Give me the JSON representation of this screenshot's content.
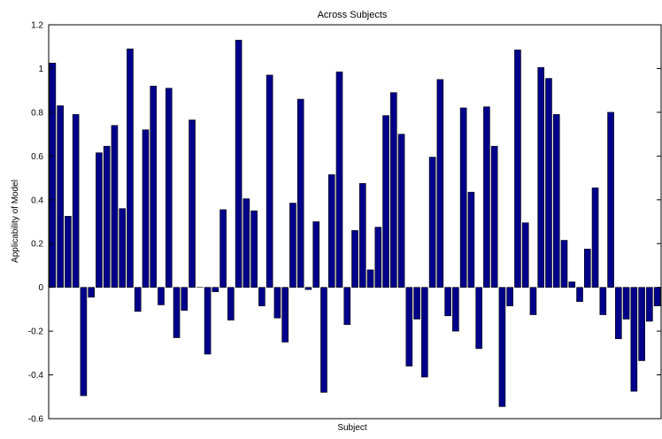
{
  "chart_data": {
    "type": "bar",
    "title": "Across Subjects",
    "xlabel": "Subject",
    "ylabel": "Applicability of Model",
    "ylim": [
      -0.6,
      1.2
    ],
    "yticks": [
      -0.6,
      -0.4,
      -0.2,
      0,
      0.2,
      0.4,
      0.6,
      0.8,
      1,
      1.2
    ],
    "ytick_labels": [
      "-0.6",
      "-0.4",
      "-0.2",
      "0",
      "0.2",
      "0.4",
      "0.6",
      "0.8",
      "1",
      "1.2"
    ],
    "grid": false,
    "bar_color": "#00008b",
    "bar_edge_color": "#000000",
    "values": [
      1.025,
      0.83,
      0.325,
      0.79,
      -0.495,
      -0.045,
      0.615,
      0.645,
      0.74,
      0.36,
      1.09,
      -0.11,
      0.72,
      0.92,
      -0.08,
      0.91,
      -0.23,
      -0.105,
      0.765,
      0.0,
      -0.305,
      -0.02,
      0.355,
      -0.15,
      1.13,
      0.405,
      0.35,
      -0.085,
      0.97,
      -0.14,
      -0.25,
      0.385,
      0.86,
      -0.01,
      0.3,
      -0.48,
      0.515,
      0.985,
      -0.17,
      0.26,
      0.475,
      0.08,
      0.275,
      0.785,
      0.89,
      0.7,
      -0.36,
      -0.145,
      -0.41,
      0.595,
      0.95,
      -0.13,
      -0.2,
      0.82,
      0.435,
      -0.28,
      0.825,
      0.645,
      -0.545,
      -0.085,
      1.085,
      0.295,
      -0.125,
      1.005,
      0.955,
      0.79,
      0.215,
      0.025,
      -0.065,
      0.175,
      0.455,
      -0.125,
      0.8,
      -0.235,
      -0.145,
      -0.475,
      -0.335,
      -0.155,
      -0.085
    ]
  }
}
